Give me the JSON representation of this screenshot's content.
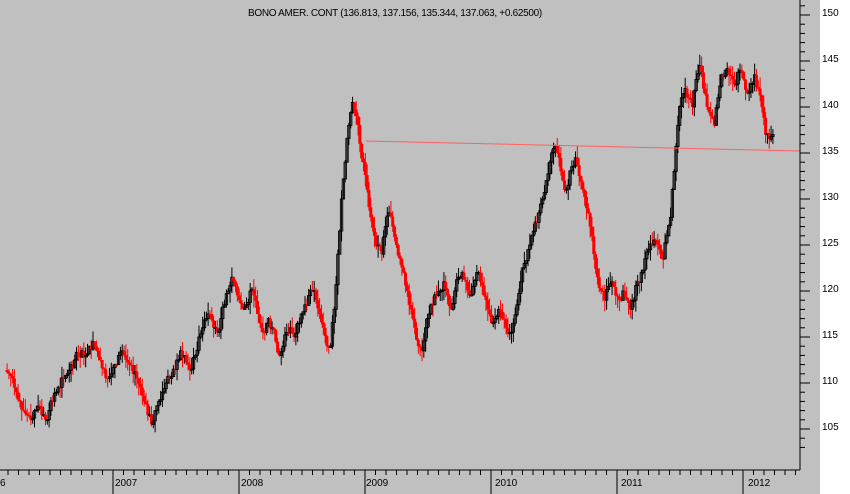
{
  "chart_data": {
    "type": "candlestick",
    "title": "BONO AMER. CONT (136.813, 137.156, 135.344, 137.063, +0.62500)",
    "instrument": "BONO AMER. CONT",
    "last_bar": {
      "open": 136.813,
      "high": 137.156,
      "low": 135.344,
      "close": 137.063,
      "change": "+0.62500"
    },
    "xlabel": "",
    "ylabel": "",
    "ylim": [
      102,
      150
    ],
    "y_ticks": [
      150,
      145,
      140,
      135,
      130,
      125,
      120,
      115,
      110,
      105
    ],
    "x_tick_labels": [
      "6",
      "2007",
      "2008",
      "2009",
      "2010",
      "2011",
      "2012"
    ],
    "grid": false,
    "colors": {
      "background": "#c0c0c0",
      "up_candle": "#000000",
      "down_candle": "#ff0000",
      "trendline": "#ff6060"
    },
    "trendline": {
      "start": {
        "date": "2008-12",
        "price": 136.3
      },
      "end": {
        "date": "2012-04",
        "price": 135.1
      }
    },
    "weekly_closes_approx": [
      111,
      110.5,
      109,
      108,
      107,
      106.5,
      106,
      107,
      107.5,
      106.5,
      106,
      107,
      108,
      109,
      109.5,
      110.5,
      111,
      112,
      112.5,
      113,
      113.5,
      113,
      114,
      114.5,
      113.5,
      112.5,
      111.5,
      110.5,
      111,
      112,
      113,
      113.5,
      112.5,
      112,
      111,
      110.5,
      109.5,
      108,
      106.5,
      105.5,
      107,
      108,
      109,
      110,
      110.5,
      111.5,
      112.5,
      113.5,
      113,
      112,
      111.5,
      113,
      115,
      116,
      117,
      117.5,
      116,
      115.5,
      117,
      118.5,
      120,
      121.5,
      120.5,
      119,
      118,
      118.5,
      120,
      119.5,
      117.5,
      116,
      115.5,
      117,
      116,
      114.5,
      113,
      114,
      115.5,
      116,
      115,
      116.5,
      117.5,
      118.5,
      119.5,
      120,
      119,
      117.5,
      116,
      114,
      114,
      118,
      124,
      130,
      134,
      138,
      140.5,
      139,
      136,
      134,
      131,
      128,
      126,
      125,
      124,
      127,
      128.5,
      127,
      125,
      123.5,
      122,
      120,
      118,
      116,
      114,
      113.5,
      116,
      117.5,
      118.5,
      119.5,
      120,
      121,
      119.5,
      118,
      120,
      121.5,
      122,
      121,
      119.5,
      120.5,
      122,
      121,
      119.5,
      118,
      116.5,
      117,
      118,
      117,
      116,
      115.5,
      116.5,
      118.5,
      121,
      123,
      124.5,
      126,
      127.5,
      128.5,
      130,
      132,
      134,
      135.5,
      135,
      133,
      131,
      131.5,
      133.5,
      134.5,
      132.5,
      131,
      129,
      127,
      124,
      121.5,
      120,
      119,
      120.5,
      121,
      119.5,
      119,
      120,
      119,
      118,
      119,
      121,
      122,
      123.5,
      124.5,
      125,
      125.5,
      124.5,
      123.5,
      126,
      128,
      133,
      138,
      141,
      142,
      141,
      140,
      143,
      144.5,
      142,
      140,
      139,
      138,
      141,
      143.5,
      144,
      143.5,
      143,
      142.5,
      144,
      143,
      141.5,
      142.5,
      143.5,
      142,
      140,
      137,
      136.5,
      137
    ]
  }
}
